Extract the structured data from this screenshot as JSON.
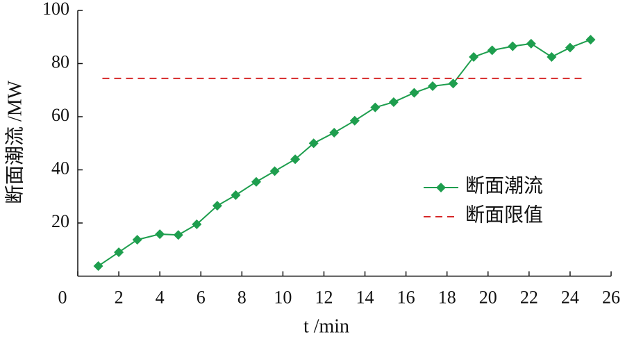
{
  "chart_data": {
    "type": "line",
    "xlabel": "t /min",
    "ylabel": "断面潮流 /MW",
    "xlim": [
      0,
      26
    ],
    "ylim": [
      0,
      100
    ],
    "xticks": [
      0,
      2,
      4,
      6,
      8,
      10,
      12,
      14,
      16,
      18,
      20,
      22,
      24,
      26
    ],
    "yticks": [
      20,
      40,
      60,
      80,
      100
    ],
    "legend": "right",
    "series": [
      {
        "name": "断面潮流",
        "color": "#1e9e4e",
        "marker": "diamond",
        "x": [
          1.0,
          2.0,
          2.9,
          4.0,
          4.9,
          5.8,
          6.8,
          7.7,
          8.7,
          9.6,
          10.6,
          11.5,
          12.5,
          13.5,
          14.5,
          15.4,
          16.4,
          17.3,
          18.3,
          19.3,
          20.2,
          21.2,
          22.1,
          23.1,
          24.0,
          25.0
        ],
        "values": [
          3.8,
          9,
          13.7,
          15.8,
          15.5,
          19.5,
          26.5,
          30.5,
          35.5,
          39.5,
          44,
          50,
          54,
          58.5,
          63.5,
          65.5,
          69,
          71.5,
          72.5,
          82.5,
          85,
          86.5,
          87.5,
          82.5,
          86,
          89
        ]
      },
      {
        "name": "断面限值",
        "color": "#d62728",
        "dash": true,
        "x": [
          1.2,
          24.7
        ],
        "values": [
          74.4,
          74.4
        ]
      }
    ]
  }
}
